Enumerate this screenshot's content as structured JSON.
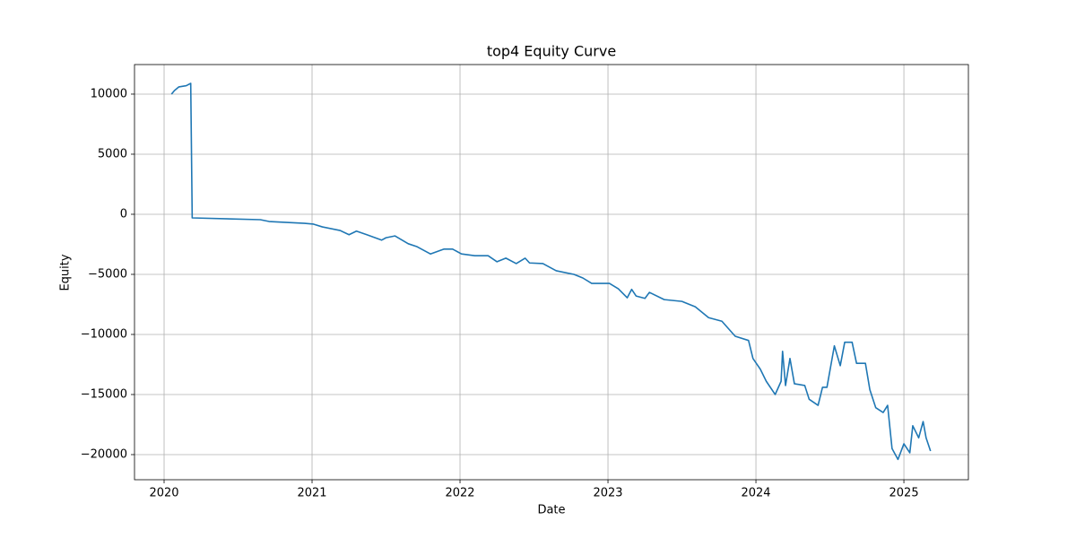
{
  "chart_data": {
    "type": "line",
    "title": "top4 Equity Curve",
    "x_label": "Date",
    "y_label": "Equity",
    "x": [
      2020.05,
      2020.07,
      2020.1,
      2020.15,
      2020.18,
      2020.19,
      2020.65,
      2020.71,
      2020.95,
      2021.01,
      2021.07,
      2021.19,
      2021.25,
      2021.3,
      2021.37,
      2021.47,
      2021.5,
      2021.56,
      2021.65,
      2021.71,
      2021.8,
      2021.89,
      2021.95,
      2022.01,
      2022.1,
      2022.19,
      2022.25,
      2022.31,
      2022.38,
      2022.44,
      2022.47,
      2022.56,
      2022.65,
      2022.77,
      2022.83,
      2022.89,
      2023.01,
      2023.07,
      2023.13,
      2023.16,
      2023.19,
      2023.25,
      2023.28,
      2023.38,
      2023.5,
      2023.59,
      2023.68,
      2023.77,
      2023.86,
      2023.95,
      2023.98,
      2024.03,
      2024.07,
      2024.13,
      2024.17,
      2024.18,
      2024.2,
      2024.23,
      2024.26,
      2024.33,
      2024.36,
      2024.42,
      2024.45,
      2024.48,
      2024.53,
      2024.57,
      2024.6,
      2024.65,
      2024.68,
      2024.74,
      2024.77,
      2024.81,
      2024.86,
      2024.89,
      2024.92,
      2024.96,
      2025.0,
      2025.04,
      2025.06,
      2025.1,
      2025.13,
      2025.15,
      2025.18
    ],
    "values": [
      10000,
      10300,
      10600,
      10700,
      10900,
      -300,
      -450,
      -600,
      -750,
      -820,
      -1050,
      -1350,
      -1700,
      -1400,
      -1700,
      -2150,
      -1950,
      -1800,
      -2450,
      -2700,
      -3300,
      -2900,
      -2900,
      -3300,
      -3450,
      -3450,
      -3950,
      -3650,
      -4100,
      -3650,
      -4050,
      -4100,
      -4700,
      -5000,
      -5300,
      -5750,
      -5750,
      -6200,
      -6950,
      -6250,
      -6800,
      -7000,
      -6500,
      -7100,
      -7250,
      -7700,
      -8600,
      -8900,
      -10150,
      -10500,
      -12000,
      -12900,
      -13900,
      -15000,
      -13900,
      -11400,
      -14250,
      -12000,
      -14100,
      -14250,
      -15400,
      -15900,
      -14400,
      -14400,
      -10950,
      -12600,
      -10650,
      -10650,
      -12400,
      -12400,
      -14600,
      -16100,
      -16500,
      -15900,
      -19500,
      -20400,
      -19100,
      -19850,
      -17600,
      -18600,
      -17250,
      -18600,
      -19700
    ],
    "color": "#1f77b4",
    "xlim": [
      2019.8,
      2025.436
    ],
    "xticks": [
      2020,
      2021,
      2022,
      2023,
      2024,
      2025
    ],
    "ylim": [
      -22090,
      12460
    ],
    "yticks": [
      {
        "value": -20000,
        "label": "−20000"
      },
      {
        "value": -15000,
        "label": "−15000"
      },
      {
        "value": -10000,
        "label": "−10000"
      },
      {
        "value": -5000,
        "label": "−5000"
      },
      0,
      5000,
      10000
    ],
    "grid": true
  }
}
